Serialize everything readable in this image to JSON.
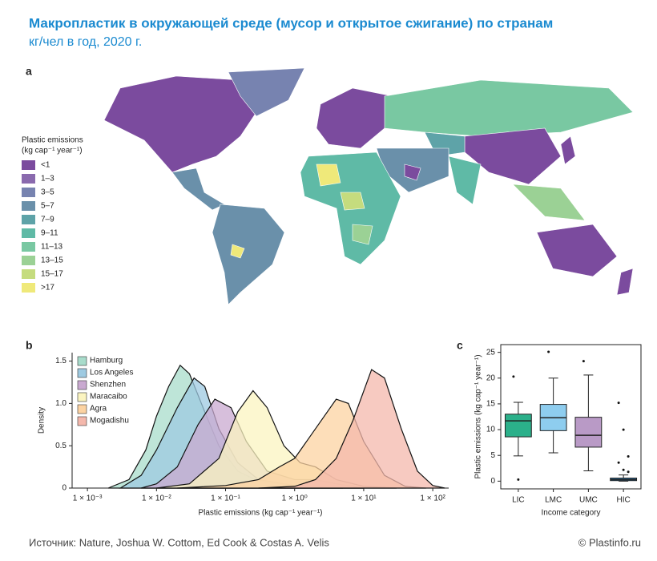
{
  "header": {
    "title": "Макропластик в окружающей среде (мусор и открытое сжигание) по странам",
    "subtitle": "кг/чел в год, 2020 г."
  },
  "map": {
    "label": "a",
    "legend": {
      "title": [
        "Plastic emissions",
        "(kg cap⁻¹ year⁻¹)"
      ],
      "items": [
        {
          "label": "<1",
          "color": "#7b4b9e"
        },
        {
          "label": "1–3",
          "color": "#8a6aae"
        },
        {
          "label": "3–5",
          "color": "#7783b0"
        },
        {
          "label": "5–7",
          "color": "#6a90aa"
        },
        {
          "label": "7–9",
          "color": "#5ea3a8"
        },
        {
          "label": "9–11",
          "color": "#5fbaa6"
        },
        {
          "label": "11–13",
          "color": "#79c8a2"
        },
        {
          "label": "13–15",
          "color": "#9bd195"
        },
        {
          "label": "15–17",
          "color": "#c5dc7e"
        },
        {
          "label": ">17",
          "color": "#efe97a"
        }
      ]
    }
  },
  "chart_data": [
    {
      "type": "density",
      "label": "b",
      "x_label": "Plastic emissions (kg cap⁻¹ year⁻¹)",
      "y_label": "Density",
      "log_x": true,
      "legend_position": "upper left",
      "xlim": [
        0.0006,
        170
      ],
      "ylim": [
        0,
        1.6
      ],
      "xticks": [
        {
          "value": 0.001,
          "label": "1 × 10⁻³"
        },
        {
          "value": 0.01,
          "label": "1 × 10⁻²"
        },
        {
          "value": 0.1,
          "label": "1 × 10⁻¹"
        },
        {
          "value": 1,
          "label": "1 × 10⁰"
        },
        {
          "value": 10,
          "label": "1 × 10¹"
        },
        {
          "value": 100,
          "label": "1 × 10²"
        }
      ],
      "yticks": [
        0,
        0.5,
        {
          "value": 1,
          "label": "1.0"
        },
        1.5
      ],
      "series": [
        {
          "name": "Hamburg",
          "color": "#a8dccb",
          "x": [
            0.002,
            0.004,
            0.007,
            0.01,
            0.015,
            0.022,
            0.03,
            0.05,
            0.08,
            0.15,
            0.3,
            0.6,
            1,
            2,
            5
          ],
          "values": [
            0,
            0.1,
            0.45,
            0.85,
            1.2,
            1.45,
            1.35,
            0.9,
            0.5,
            0.2,
            0.08,
            0.05,
            0.03,
            0.01,
            0
          ]
        },
        {
          "name": "Los Angeles",
          "color": "#9ecae1",
          "x": [
            0.003,
            0.006,
            0.01,
            0.02,
            0.035,
            0.05,
            0.08,
            0.15,
            0.3,
            1,
            3,
            10
          ],
          "values": [
            0,
            0.15,
            0.45,
            0.95,
            1.3,
            1.2,
            0.7,
            0.3,
            0.1,
            0.03,
            0.01,
            0
          ]
        },
        {
          "name": "Shenzhen",
          "color": "#c9a9d0",
          "x": [
            0.006,
            0.01,
            0.02,
            0.04,
            0.07,
            0.12,
            0.2,
            0.4,
            1,
            2,
            4,
            10
          ],
          "values": [
            0,
            0.05,
            0.25,
            0.75,
            1.05,
            0.95,
            0.55,
            0.2,
            0.1,
            0.1,
            0.05,
            0
          ]
        },
        {
          "name": "Maracaibo",
          "color": "#fbf4c0",
          "x": [
            0.01,
            0.03,
            0.08,
            0.15,
            0.25,
            0.4,
            0.7,
            1.2,
            2,
            4,
            10,
            30
          ],
          "values": [
            0,
            0.05,
            0.35,
            0.9,
            1.15,
            0.95,
            0.5,
            0.3,
            0.25,
            0.1,
            0.02,
            0
          ]
        },
        {
          "name": "Agra",
          "color": "#fcd3a2",
          "x": [
            0.02,
            0.1,
            0.3,
            0.6,
            1,
            2,
            4,
            6,
            10,
            20,
            40,
            80
          ],
          "values": [
            0,
            0.03,
            0.1,
            0.25,
            0.35,
            0.7,
            1.05,
            1,
            0.55,
            0.15,
            0.02,
            0
          ]
        },
        {
          "name": "Mogadishu",
          "color": "#f4b8ac",
          "x": [
            0.3,
            1,
            2,
            4,
            7,
            13,
            20,
            35,
            60,
            100,
            150
          ],
          "values": [
            0,
            0.02,
            0.1,
            0.35,
            0.8,
            1.4,
            1.3,
            0.7,
            0.2,
            0.03,
            0
          ]
        }
      ]
    },
    {
      "type": "box",
      "label": "c",
      "x_label": "Income category",
      "y_label": "Plastic emissions (kg cap⁻¹ year⁻¹)",
      "ylim": [
        -1.5,
        26.5
      ],
      "yticks": [
        0,
        5,
        10,
        15,
        20,
        25
      ],
      "categories": [
        "LIC",
        "LMC",
        "UMC",
        "HIC"
      ],
      "boxes": [
        {
          "color": "#2bb08a",
          "whisker_low": 4.9,
          "q1": 8.6,
          "median": 11.7,
          "q3": 13,
          "whisker_high": 15.3,
          "outliers": [
            20.3,
            0.3
          ]
        },
        {
          "color": "#8ecdef",
          "whisker_low": 5.5,
          "q1": 9.8,
          "median": 12.3,
          "q3": 14.9,
          "whisker_high": 20,
          "outliers": [
            25.1
          ]
        },
        {
          "color": "#b99ac6",
          "whisker_low": 2,
          "q1": 6.6,
          "median": 8.9,
          "q3": 12.4,
          "whisker_high": 20.6,
          "outliers": [
            23.3
          ]
        },
        {
          "color": "#2c7fb8",
          "whisker_low": 0,
          "q1": 0.1,
          "median": 0.3,
          "q3": 0.6,
          "whisker_high": 1.2,
          "outliers": [
            15.2,
            10,
            4.8,
            3.6,
            2.2,
            1.8
          ]
        }
      ]
    }
  ],
  "footer": {
    "source": "Источник: Nature, Joshua W. Cottom, Ed Cook & Costas A. Velis",
    "credit": "© Plastinfo.ru"
  }
}
